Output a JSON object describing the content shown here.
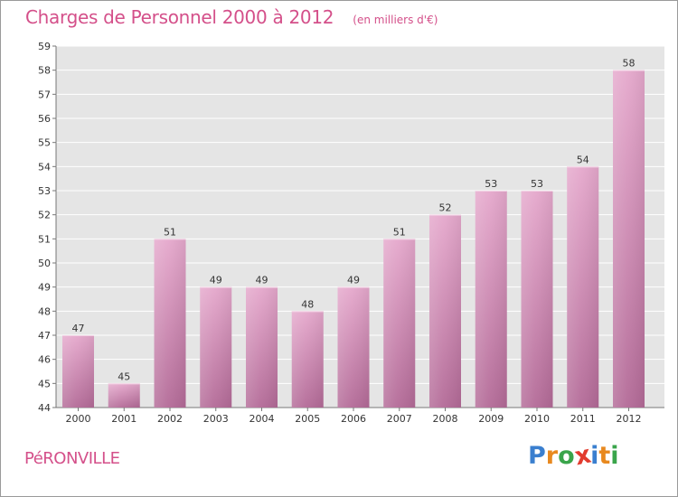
{
  "header": {
    "title": "Charges de Personnel 2000 à 2012",
    "subtitle": "(en milliers d'€)"
  },
  "footer": {
    "town": "PéRONVILLE",
    "brand": "Proxiti"
  },
  "colors": {
    "accent": "#d4508a",
    "bar_light": "#e5a8cc",
    "bar_dark": "#b36a97",
    "plot_background": "#e5e5e5",
    "logo_letters": [
      "#3a7fcf",
      "#e8891f",
      "#3aa54b",
      "#e23c2f",
      "#3a7fcf",
      "#e8891f",
      "#3aa54b"
    ]
  },
  "chart_data": {
    "type": "bar",
    "title": "Charges de Personnel 2000 à 2012",
    "subtitle": "(en milliers d'€)",
    "categories": [
      "2000",
      "2001",
      "2002",
      "2003",
      "2004",
      "2005",
      "2006",
      "2007",
      "2008",
      "2009",
      "2010",
      "2011",
      "2012"
    ],
    "values": [
      47,
      45,
      51,
      49,
      49,
      48,
      49,
      51,
      52,
      53,
      53,
      54,
      58
    ],
    "ylim": [
      44,
      59
    ],
    "yticks": [
      44,
      45,
      46,
      47,
      48,
      49,
      50,
      51,
      52,
      53,
      54,
      55,
      56,
      57,
      58,
      59
    ],
    "grid": true,
    "data_labels": true
  }
}
